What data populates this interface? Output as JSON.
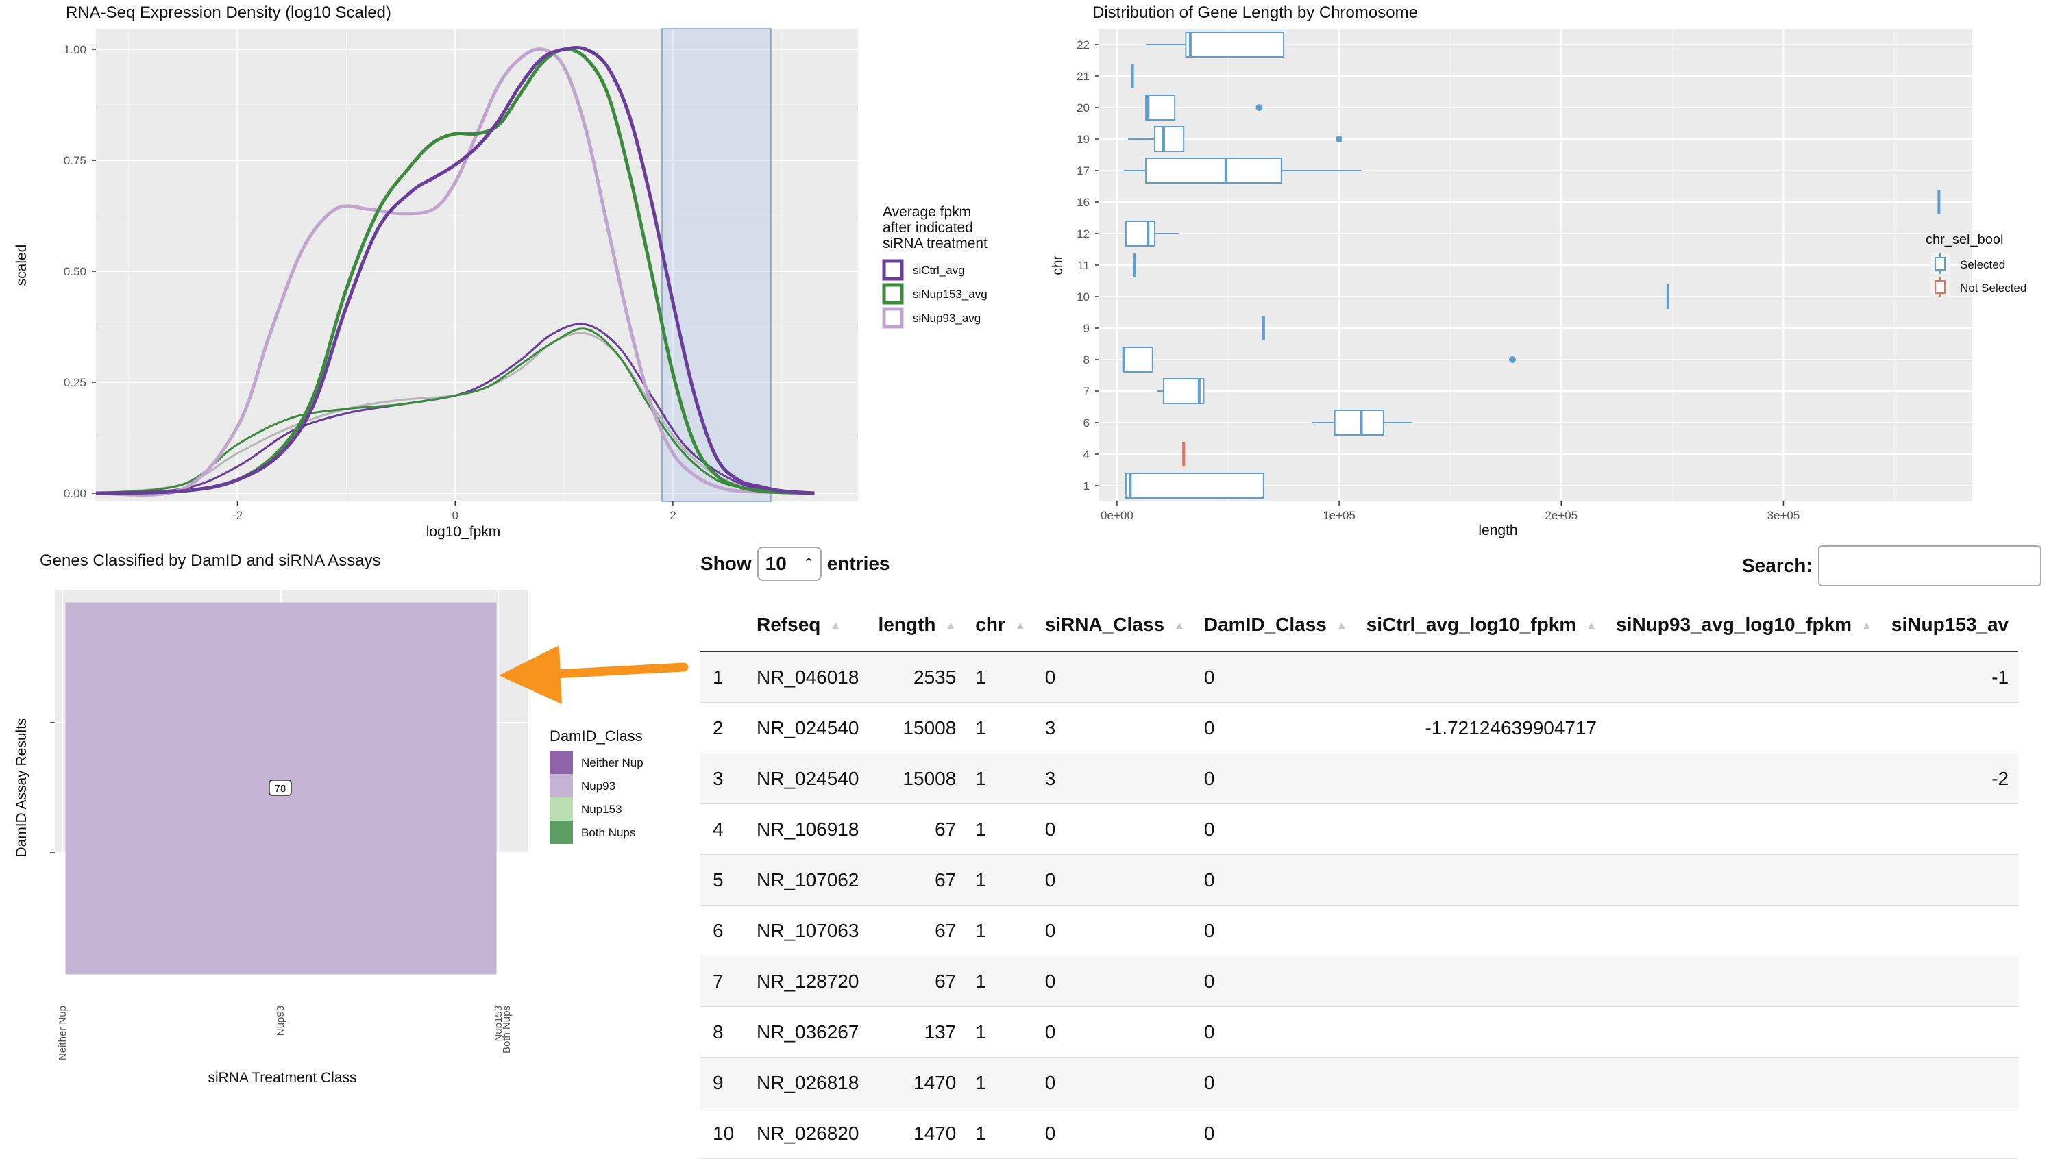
{
  "density_chart": {
    "title": "RNA-Seq Expression Density (log10 Scaled)",
    "xlabel": "log10_fpkm",
    "ylabel": "scaled",
    "x_ticks": [
      "-2",
      "0",
      "2"
    ],
    "y_ticks": [
      "0.00",
      "0.25",
      "0.50",
      "0.75",
      "1.00"
    ],
    "legend_title": [
      "Average fpkm",
      "after indicated",
      "siRNA treatment"
    ],
    "legend_items": [
      {
        "label": "siCtrl_avg",
        "color": "#6a3d9a"
      },
      {
        "label": "siNup153_avg",
        "color": "#3b8a3e"
      },
      {
        "label": "siNup93_avg",
        "color": "#c2a5cf"
      }
    ],
    "highlight_range": [
      1.9,
      2.9
    ]
  },
  "box_chart": {
    "title": "Distribution of Gene Length by Chromosome",
    "xlabel": "length",
    "ylabel": "chr",
    "x_ticks": [
      "0e+00",
      "1e+05",
      "2e+05",
      "3e+05"
    ],
    "legend_title": "chr_sel_bool",
    "legend_items": [
      {
        "label": "Selected",
        "color": "#5e9fcf"
      },
      {
        "label": "Not Selected",
        "color": "#e8704f"
      }
    ]
  },
  "tile_chart": {
    "title": "Genes Classified by DamID and siRNA Assays",
    "xlabel": "siRNA Treatment Class",
    "ylabel": "DamID Assay Results",
    "x_ticks": [
      "Neither Nup",
      "Nup93",
      "Nup153",
      "Both Nups"
    ],
    "tile_label": "78",
    "legend_title": "DamID_Class",
    "legend_items": [
      {
        "label": "Neither Nup",
        "color": "#8e63a8"
      },
      {
        "label": "Nup93",
        "color": "#c5b3d4"
      },
      {
        "label": "Nup153",
        "color": "#b9dfb1"
      },
      {
        "label": "Both Nups",
        "color": "#5c9e62"
      }
    ]
  },
  "chart_data": [
    {
      "type": "line",
      "title": "RNA-Seq Expression Density (log10 Scaled)",
      "xlabel": "log10_fpkm",
      "ylabel": "scaled",
      "xlim": [
        -3.3,
        3.7
      ],
      "ylim": [
        0,
        1.0
      ],
      "grid": true,
      "legend": "right",
      "series": [
        {
          "name": "siCtrl_avg",
          "color": "#6a3d9a",
          "x": [
            -3.3,
            -2.5,
            -2.0,
            -1.6,
            -1.3,
            -1.0,
            -0.7,
            -0.4,
            -0.2,
            0.0,
            0.2,
            0.4,
            0.6,
            0.8,
            1.0,
            1.2,
            1.4,
            1.6,
            1.8,
            2.0,
            2.2,
            2.4,
            2.6,
            2.8,
            3.0,
            3.3
          ],
          "y": [
            0.0,
            0.005,
            0.03,
            0.09,
            0.2,
            0.42,
            0.6,
            0.68,
            0.71,
            0.74,
            0.78,
            0.84,
            0.92,
            0.98,
            1.0,
            1.0,
            0.96,
            0.85,
            0.66,
            0.43,
            0.22,
            0.08,
            0.03,
            0.015,
            0.005,
            0.0
          ]
        },
        {
          "name": "siNup153_avg",
          "color": "#3b8a3e",
          "x": [
            -3.3,
            -2.5,
            -2.0,
            -1.6,
            -1.3,
            -1.0,
            -0.7,
            -0.4,
            -0.2,
            0.0,
            0.2,
            0.4,
            0.6,
            0.8,
            1.0,
            1.2,
            1.4,
            1.6,
            1.8,
            2.0,
            2.2,
            2.4,
            2.6,
            2.8,
            3.0,
            3.3
          ],
          "y": [
            0.0,
            0.005,
            0.03,
            0.1,
            0.22,
            0.46,
            0.64,
            0.74,
            0.79,
            0.81,
            0.81,
            0.83,
            0.9,
            0.97,
            1.0,
            0.98,
            0.9,
            0.72,
            0.5,
            0.27,
            0.11,
            0.04,
            0.015,
            0.005,
            0.002,
            0.0
          ]
        },
        {
          "name": "siNup93_avg",
          "color": "#c2a5cf",
          "x": [
            -3.3,
            -2.5,
            -2.0,
            -1.7,
            -1.4,
            -1.1,
            -0.8,
            -0.5,
            -0.2,
            0.0,
            0.2,
            0.4,
            0.6,
            0.8,
            1.0,
            1.2,
            1.4,
            1.6,
            1.8,
            2.0,
            2.2,
            2.4,
            2.6,
            3.0,
            3.3
          ],
          "y": [
            0.0,
            0.01,
            0.15,
            0.36,
            0.55,
            0.64,
            0.64,
            0.63,
            0.64,
            0.7,
            0.81,
            0.92,
            0.98,
            1.0,
            0.96,
            0.82,
            0.6,
            0.38,
            0.2,
            0.09,
            0.04,
            0.015,
            0.005,
            0.002,
            0.0
          ]
        },
        {
          "name": "",
          "color": "#6a3d9a",
          "x": [
            -3.3,
            -2.5,
            -2.0,
            -1.5,
            -1.0,
            -0.5,
            0.0,
            0.3,
            0.6,
            0.9,
            1.2,
            1.5,
            1.8,
            2.1,
            2.4,
            2.7,
            3.0,
            3.3
          ],
          "y": [
            0.0,
            0.01,
            0.06,
            0.14,
            0.18,
            0.2,
            0.22,
            0.25,
            0.3,
            0.36,
            0.38,
            0.33,
            0.22,
            0.11,
            0.05,
            0.015,
            0.005,
            0.0
          ]
        },
        {
          "name": "",
          "color": "#3b8a3e",
          "x": [
            -3.3,
            -2.5,
            -2.0,
            -1.5,
            -1.0,
            -0.5,
            0.0,
            0.3,
            0.6,
            0.9,
            1.2,
            1.5,
            1.8,
            2.1,
            2.4,
            2.7,
            3.0,
            3.3
          ],
          "y": [
            0.0,
            0.02,
            0.11,
            0.17,
            0.19,
            0.2,
            0.22,
            0.24,
            0.29,
            0.34,
            0.37,
            0.31,
            0.19,
            0.09,
            0.03,
            0.01,
            0.003,
            0.0
          ]
        },
        {
          "name": "",
          "color": "#b6b6b6",
          "x": [
            -3.3,
            -2.5,
            -2.0,
            -1.5,
            -1.0,
            -0.5,
            0.0,
            0.3,
            0.6,
            0.9,
            1.2,
            1.5,
            1.8,
            2.1,
            2.4,
            2.7,
            3.0,
            3.3
          ],
          "y": [
            0.0,
            0.02,
            0.09,
            0.15,
            0.19,
            0.21,
            0.22,
            0.24,
            0.28,
            0.34,
            0.36,
            0.31,
            0.2,
            0.1,
            0.04,
            0.012,
            0.004,
            0.0
          ]
        }
      ]
    },
    {
      "type": "box",
      "title": "Distribution of Gene Length by Chromosome",
      "xlabel": "length",
      "ylabel": "chr",
      "xlim": [
        -8000,
        385000
      ],
      "categories": [
        "1",
        "4",
        "6",
        "7",
        "8",
        "9",
        "10",
        "11",
        "12",
        "16",
        "17",
        "19",
        "20",
        "21",
        "22"
      ],
      "legend": "right",
      "boxes": [
        {
          "chr": "1",
          "group": "Selected",
          "min": 4000,
          "q1": 4000,
          "median": 6000,
          "q3": 66000,
          "max": 66000,
          "outliers": []
        },
        {
          "chr": "4",
          "group": "Not Selected",
          "min": 30000,
          "q1": 30000,
          "median": 30000,
          "q3": 30000,
          "max": 30000,
          "outliers": []
        },
        {
          "chr": "6",
          "group": "Selected",
          "min": 88000,
          "q1": 98000,
          "median": 110000,
          "q3": 120000,
          "max": 133000,
          "outliers": []
        },
        {
          "chr": "7",
          "group": "Selected",
          "min": 18000,
          "q1": 21000,
          "median": 37000,
          "q3": 39000,
          "max": 39000,
          "outliers": []
        },
        {
          "chr": "8",
          "group": "Selected",
          "min": 3000,
          "q1": 3000,
          "median": 3000,
          "q3": 16000,
          "max": 16000,
          "outliers": [
            178000
          ]
        },
        {
          "chr": "9",
          "group": "Selected",
          "min": 66000,
          "q1": 66000,
          "median": 66000,
          "q3": 66000,
          "max": 66000,
          "outliers": []
        },
        {
          "chr": "10",
          "group": "Selected",
          "min": 248000,
          "q1": 248000,
          "median": 248000,
          "q3": 248000,
          "max": 248000,
          "outliers": []
        },
        {
          "chr": "11",
          "group": "Selected",
          "min": 8000,
          "q1": 8000,
          "median": 8000,
          "q3": 8000,
          "max": 8000,
          "outliers": []
        },
        {
          "chr": "12",
          "group": "Selected",
          "min": 4000,
          "q1": 4000,
          "median": 14000,
          "q3": 17000,
          "max": 28000,
          "outliers": []
        },
        {
          "chr": "16",
          "group": "Selected",
          "min": 370000,
          "q1": 370000,
          "median": 370000,
          "q3": 370000,
          "max": 370000,
          "outliers": []
        },
        {
          "chr": "17",
          "group": "Selected",
          "min": 3000,
          "q1": 13000,
          "median": 49000,
          "q3": 74000,
          "max": 110000,
          "outliers": []
        },
        {
          "chr": "19",
          "group": "Selected",
          "min": 5000,
          "q1": 17000,
          "median": 21000,
          "q3": 30000,
          "max": 30000,
          "outliers": [
            100000
          ]
        },
        {
          "chr": "20",
          "group": "Selected",
          "min": 13000,
          "q1": 13000,
          "median": 14000,
          "q3": 26000,
          "max": 26000,
          "outliers": [
            64000
          ]
        },
        {
          "chr": "21",
          "group": "Selected",
          "min": 7000,
          "q1": 7000,
          "median": 7000,
          "q3": 7000,
          "max": 7000,
          "outliers": []
        },
        {
          "chr": "22",
          "group": "Selected",
          "min": 13000,
          "q1": 31000,
          "median": 33000,
          "q3": 75000,
          "max": 75000,
          "outliers": []
        }
      ]
    },
    {
      "type": "heatmap",
      "title": "Genes Classified by DamID and siRNA Assays",
      "xlabel": "siRNA Treatment Class",
      "ylabel": "DamID Assay Results",
      "categories": [
        "Neither Nup",
        "Nup93",
        "Nup153",
        "Both Nups"
      ],
      "cells": [
        {
          "x": "Nup93",
          "y": "Nup93",
          "value": 78,
          "color": "#c5b3d4"
        }
      ],
      "legend": "right"
    }
  ],
  "arrow": {
    "color": "#f8941d"
  },
  "table": {
    "show_label": "Show",
    "entries_label": "entries",
    "page_size": "10",
    "search_label": "Search:",
    "search_value": "",
    "columns": [
      "",
      "Refseq",
      "length",
      "chr",
      "siRNA_Class",
      "DamID_Class",
      "siCtrl_avg_log10_fpkm",
      "siNup93_avg_log10_fpkm",
      "siNup153_av"
    ],
    "rows": [
      [
        "1",
        "NR_046018",
        "2535",
        "1",
        "0",
        "0",
        "",
        "",
        "-1"
      ],
      [
        "2",
        "NR_024540",
        "15008",
        "1",
        "3",
        "0",
        "-1.72124639904717",
        "",
        ""
      ],
      [
        "3",
        "NR_024540",
        "15008",
        "1",
        "3",
        "0",
        "",
        "",
        "-2"
      ],
      [
        "4",
        "NR_106918",
        "67",
        "1",
        "0",
        "0",
        "",
        "",
        ""
      ],
      [
        "5",
        "NR_107062",
        "67",
        "1",
        "0",
        "0",
        "",
        "",
        ""
      ],
      [
        "6",
        "NR_107063",
        "67",
        "1",
        "0",
        "0",
        "",
        "",
        ""
      ],
      [
        "7",
        "NR_128720",
        "67",
        "1",
        "0",
        "0",
        "",
        "",
        ""
      ],
      [
        "8",
        "NR_036267",
        "137",
        "1",
        "0",
        "0",
        "",
        "",
        ""
      ],
      [
        "9",
        "NR_026818",
        "1470",
        "1",
        "0",
        "0",
        "",
        "",
        ""
      ],
      [
        "10",
        "NR_026820",
        "1470",
        "1",
        "0",
        "0",
        "",
        "",
        ""
      ]
    ]
  }
}
